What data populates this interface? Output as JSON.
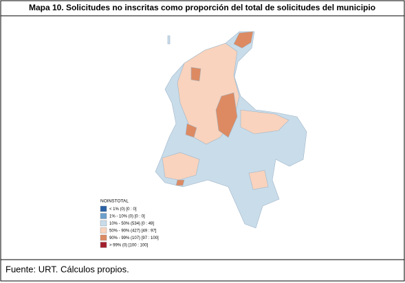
{
  "header": {
    "title": "Mapa 10. Solicitudes no inscritas como proporción del total de solicitudes del municipio"
  },
  "legend": {
    "title": "NOINSTOTAL",
    "entries": [
      {
        "label": "< 1% (0)  [0 : 0]",
        "color": "#2b62a6"
      },
      {
        "label": "1% - 10% (0)  [0 : 0]",
        "color": "#6c9fcb"
      },
      {
        "label": "10% - 50% (534)  [0 : 49]",
        "color": "#c9dcea"
      },
      {
        "label": "50% - 90% (427)  [49 : 97]",
        "color": "#f9d3bd"
      },
      {
        "label": "90% - 99% (107)  [97 : 100]",
        "color": "#dd8a62"
      },
      {
        "label": "> 99% (0)  [100 : 100]",
        "color": "#a31f2e"
      }
    ]
  },
  "footer": {
    "source": "Fuente: URT. Cálculos propios."
  }
}
